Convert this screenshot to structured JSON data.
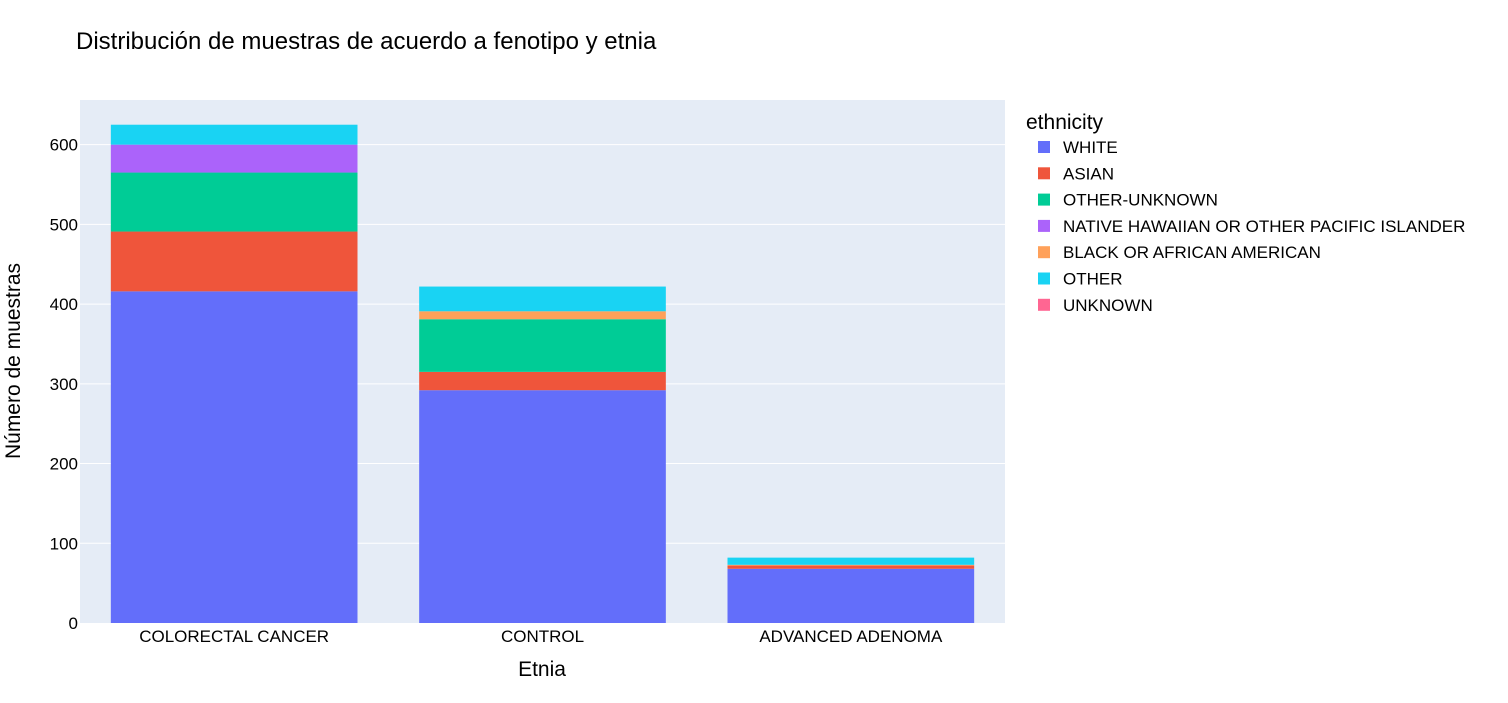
{
  "chart_data": {
    "type": "bar",
    "barmode": "stack",
    "title": "Distribución de muestras de acuerdo a fenotipo y etnia",
    "xlabel": "Etnia",
    "ylabel": "Número de muestras",
    "categories": [
      "COLORECTAL CANCER",
      "CONTROL",
      "ADVANCED ADENOMA"
    ],
    "ylim": [
      0,
      656
    ],
    "yticks": [
      0,
      100,
      200,
      300,
      400,
      500,
      600
    ],
    "grid": true,
    "legend": {
      "title": "ethnicity",
      "position": "right"
    },
    "series": [
      {
        "name": "WHITE",
        "color": "#636efa",
        "values": [
          416,
          292,
          68
        ]
      },
      {
        "name": "ASIAN",
        "color": "#ef553b",
        "values": [
          75,
          23,
          4
        ]
      },
      {
        "name": "OTHER-UNKNOWN",
        "color": "#00cc96",
        "values": [
          74,
          66,
          0
        ]
      },
      {
        "name": "NATIVE HAWAIIAN OR OTHER PACIFIC ISLANDER",
        "color": "#ab63fa",
        "values": [
          35,
          0,
          0
        ]
      },
      {
        "name": "BLACK OR AFRICAN AMERICAN",
        "color": "#ffa15a",
        "values": [
          0,
          10,
          1
        ]
      },
      {
        "name": "OTHER",
        "color": "#19d3f3",
        "values": [
          25,
          31,
          9
        ]
      },
      {
        "name": "UNKNOWN",
        "color": "#ff6692",
        "values": [
          0,
          0,
          0
        ]
      }
    ],
    "colors": {
      "plot_background": "#e5ecf6",
      "grid": "#ffffff"
    }
  }
}
